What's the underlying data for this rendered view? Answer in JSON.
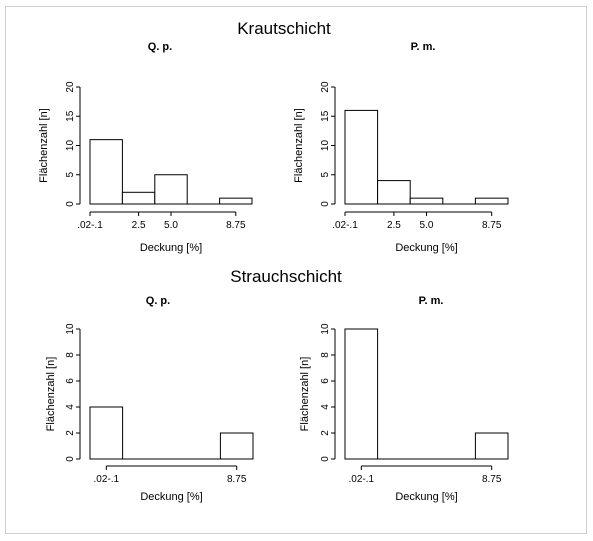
{
  "sections": [
    {
      "title": "Krautschicht"
    },
    {
      "title": "Strauchschicht"
    }
  ],
  "chart_data": [
    {
      "type": "bar",
      "section": "Krautschicht",
      "title": "Q. p.",
      "xlabel": "Deckung [%]",
      "ylabel": "Flächenzahl [n]",
      "ylim": [
        0,
        20
      ],
      "yticks": [
        0,
        5,
        10,
        15,
        20
      ],
      "bin_edges": [
        0,
        1,
        2,
        3,
        4,
        5
      ],
      "xticks": [
        {
          "at": 0,
          "label": ".02-.1"
        },
        {
          "at": 1.5,
          "label": "2.5"
        },
        {
          "at": 2.5,
          "label": "5.0"
        },
        {
          "at": 4.5,
          "label": "8.75"
        }
      ],
      "values": [
        11,
        2,
        5,
        0,
        1
      ]
    },
    {
      "type": "bar",
      "section": "Krautschicht",
      "title": "P. m.",
      "xlabel": "Deckung [%]",
      "ylabel": "Flächenzahl [n]",
      "ylim": [
        0,
        20
      ],
      "yticks": [
        0,
        5,
        10,
        15,
        20
      ],
      "bin_edges": [
        0,
        1,
        2,
        3,
        4,
        5
      ],
      "xticks": [
        {
          "at": 0,
          "label": ".02-.1"
        },
        {
          "at": 1.5,
          "label": "2.5"
        },
        {
          "at": 2.5,
          "label": "5.0"
        },
        {
          "at": 4.5,
          "label": "8.75"
        }
      ],
      "values": [
        16,
        4,
        1,
        0,
        1
      ]
    },
    {
      "type": "bar",
      "section": "Strauchschicht",
      "title": "Q. p.",
      "xlabel": "Deckung [%]",
      "ylabel": "Flächenzahl [n]",
      "ylim": [
        0,
        10
      ],
      "yticks": [
        0,
        2,
        4,
        6,
        8,
        10
      ],
      "bin_edges": [
        0,
        1,
        2,
        3,
        4,
        5
      ],
      "xticks": [
        {
          "at": 0.5,
          "label": ".02-.1"
        },
        {
          "at": 4.5,
          "label": "8.75"
        }
      ],
      "values": [
        4,
        0,
        0,
        0,
        2
      ]
    },
    {
      "type": "bar",
      "section": "Strauchschicht",
      "title": "P. m.",
      "xlabel": "Deckung [%]",
      "ylabel": "Flächenzahl [n]",
      "ylim": [
        0,
        10
      ],
      "yticks": [
        0,
        2,
        4,
        6,
        8,
        10
      ],
      "bin_edges": [
        0,
        1,
        2,
        3,
        4,
        5
      ],
      "xticks": [
        {
          "at": 0.5,
          "label": ".02-.1"
        },
        {
          "at": 4.5,
          "label": "8.75"
        }
      ],
      "values": [
        10,
        0,
        0,
        0,
        2
      ]
    }
  ]
}
